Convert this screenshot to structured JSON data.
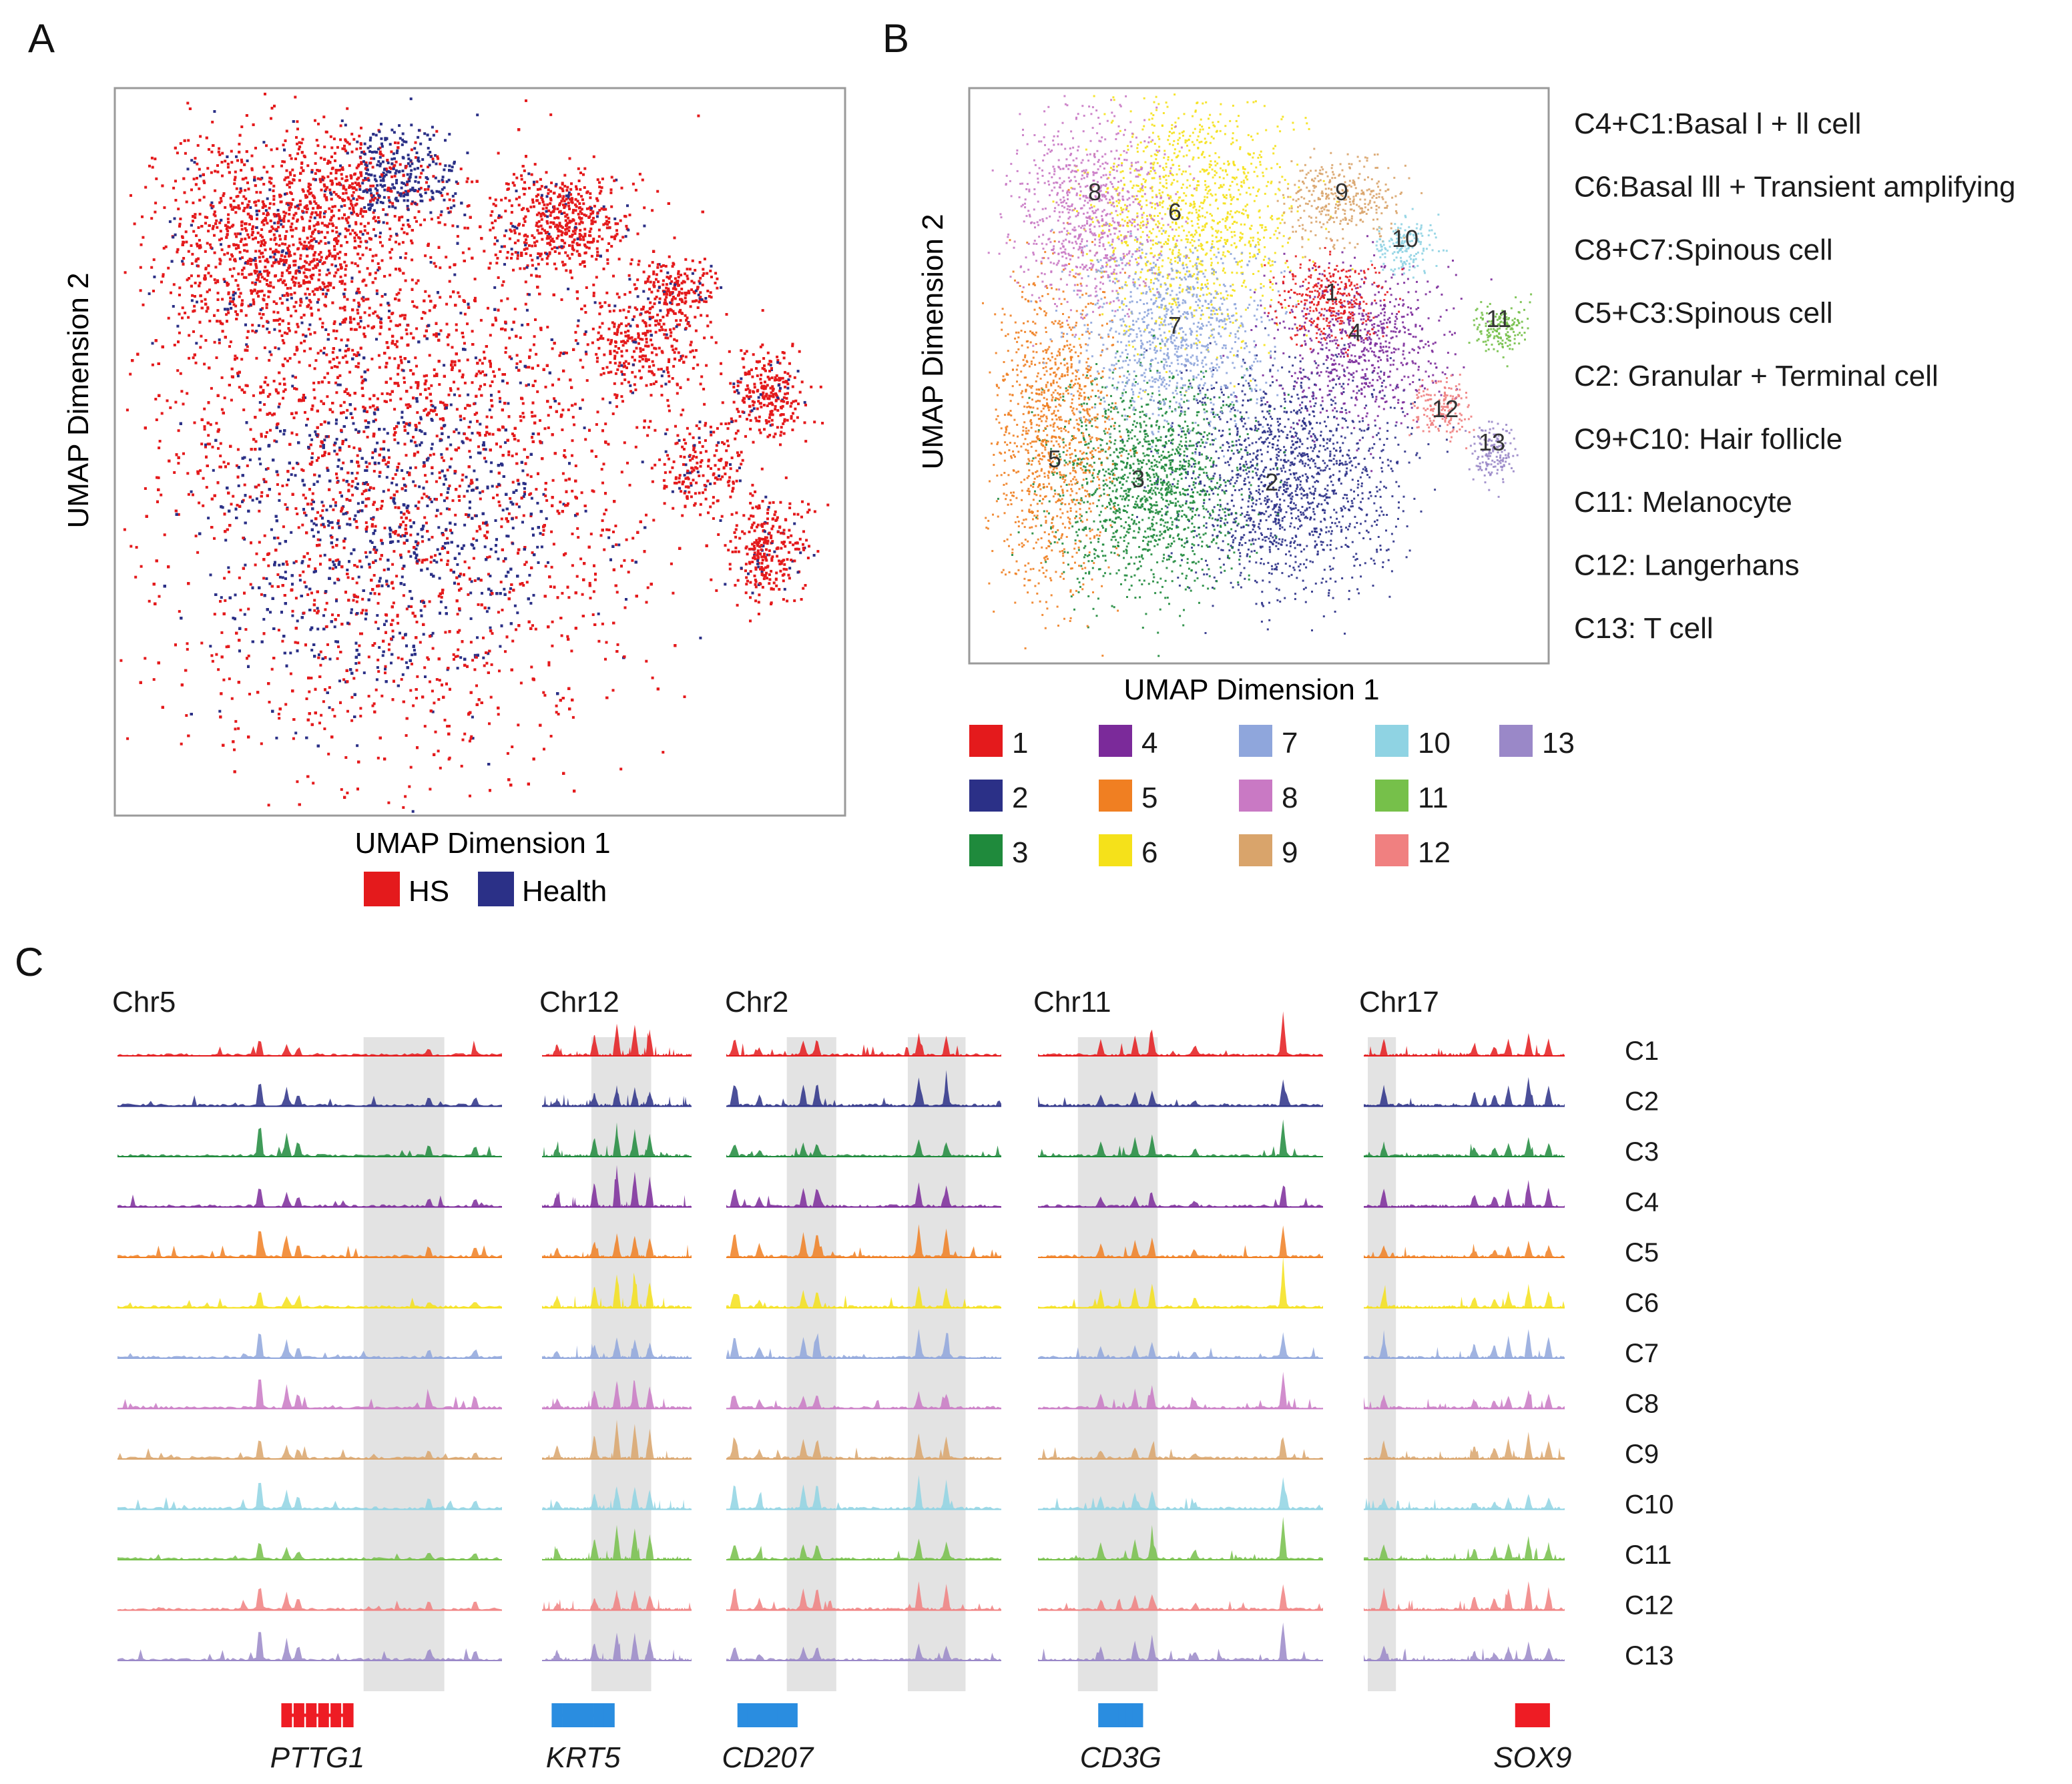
{
  "panels": {
    "a": "A",
    "b": "B",
    "c": "C"
  },
  "colors": {
    "hs": "#e41a1c",
    "health": "#2b3087",
    "clusters": [
      "#e41a1c",
      "#2b3087",
      "#1f8a3c",
      "#7b2a9a",
      "#f07f22",
      "#f5e11a",
      "#8fa6dc",
      "#c979c4",
      "#d9a46b",
      "#8fd3e3",
      "#76c04a",
      "#f08080",
      "#9a88c8"
    ],
    "gene_red": "#ee1c24",
    "gene_blue": "#2a8de0",
    "shade": "#e3e3e3"
  },
  "chart_data": [
    {
      "type": "scatter",
      "panel": "A",
      "xlabel": "UMAP Dimension 1",
      "ylabel": "UMAP Dimension 2",
      "legend": [
        {
          "name": "HS",
          "color": "#e41a1c"
        },
        {
          "name": "Health",
          "color": "#2b3087"
        }
      ],
      "legend_position": "bottom"
    },
    {
      "type": "scatter",
      "panel": "B",
      "xlabel": "UMAP Dimension 1",
      "ylabel": "UMAP Dimension 2",
      "cluster_labels": [
        "1",
        "2",
        "3",
        "4",
        "5",
        "6",
        "7",
        "8",
        "9",
        "10",
        "11",
        "12",
        "13"
      ],
      "annotations": [
        "C4+C1:Basal l + ll cell",
        "C6:Basal lll + Transient amplifying",
        "C8+C7:Spinous cell",
        "C5+C3:Spinous cell",
        "C2: Granular + Terminal cell",
        "C9+C10: Hair follicle",
        "C11: Melanocyte",
        "C12: Langerhans",
        "C13: T cell"
      ],
      "legend_position": "bottom"
    },
    {
      "type": "area",
      "panel": "C",
      "chromosomes": [
        "Chr5",
        "Chr12",
        "Chr2",
        "Chr11",
        "Chr17"
      ],
      "genes": [
        "PTTG1",
        "KRT5",
        "CD207",
        "CD3G",
        "SOX9"
      ],
      "tracks": [
        "C1",
        "C2",
        "C3",
        "C4",
        "C5",
        "C6",
        "C7",
        "C8",
        "C9",
        "C10",
        "C11",
        "C12",
        "C13"
      ]
    }
  ]
}
